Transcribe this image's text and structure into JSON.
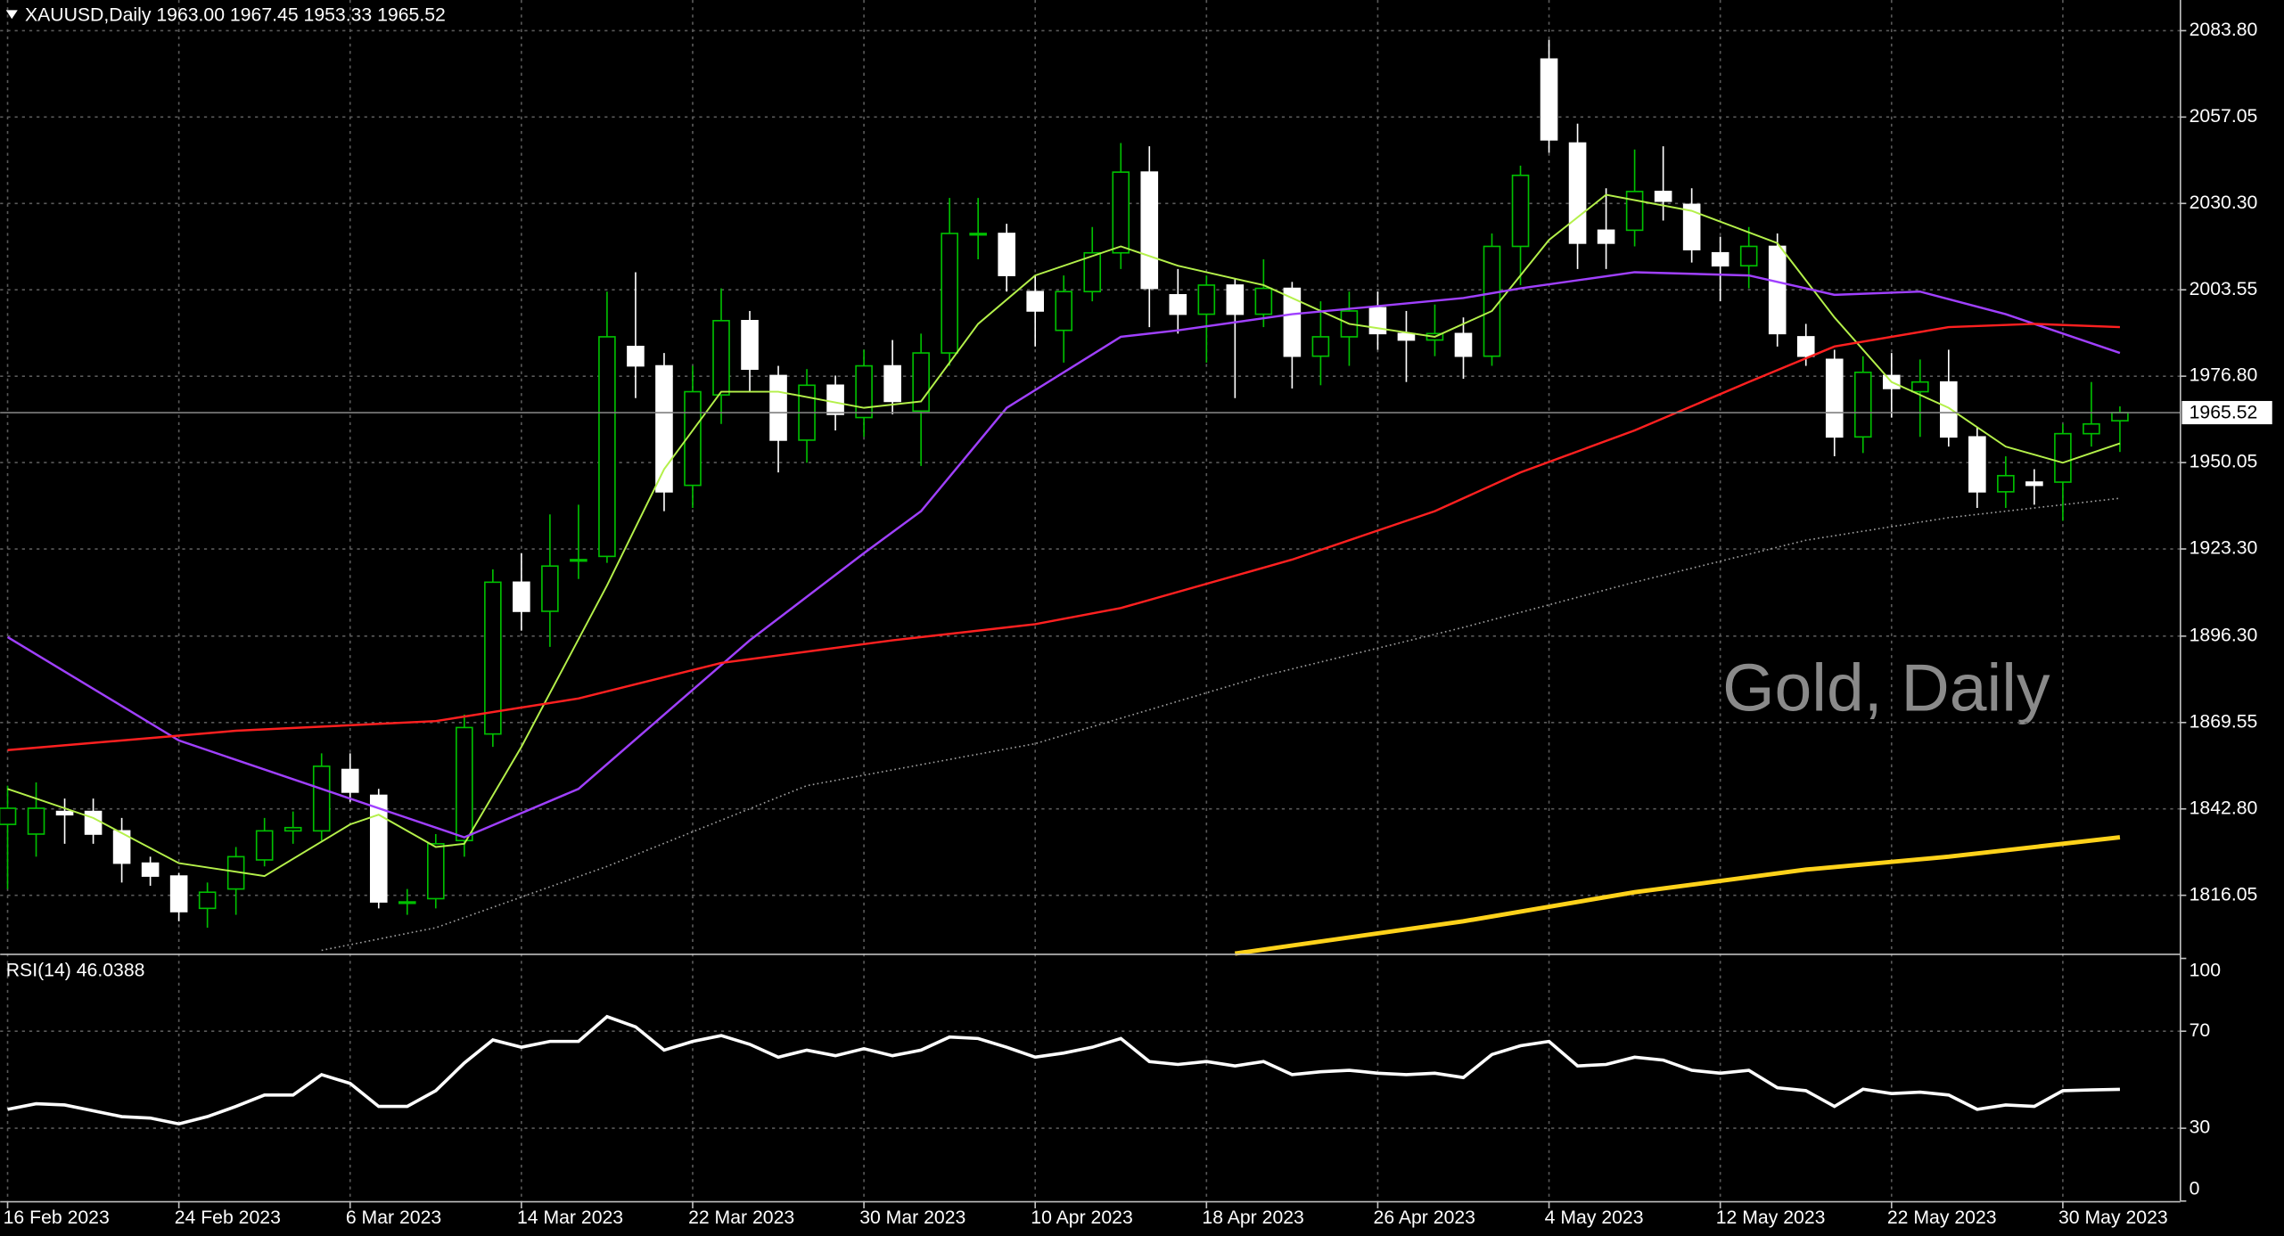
{
  "chart_data": [
    {
      "type": "candlestick",
      "title": "XAUUSD,Daily  1963.00 1967.45 1953.33 1965.52",
      "watermark": "Gold, Daily",
      "up_color": "#00c000",
      "down_color": "#ffffff",
      "open": [
        1838,
        1835,
        1842,
        1842,
        1836,
        1826,
        1822,
        1812,
        1818,
        1827,
        1836,
        1836,
        1855,
        1847,
        1814,
        1815,
        1833,
        1866,
        1913,
        1904,
        1920,
        1921,
        1986,
        1980,
        1943,
        1971,
        1994,
        1977,
        1957,
        1974,
        1964,
        1980,
        1966,
        1984,
        2021,
        2021,
        2003,
        1991,
        2003,
        2015,
        2040,
        2002,
        1996,
        2005,
        1996,
        2004,
        1983,
        1989,
        1998,
        1990,
        1988,
        1990,
        1983,
        2017,
        2075,
        2049,
        2022,
        2022,
        2034,
        2030,
        2015,
        2011,
        2017,
        1989,
        1982,
        1958,
        1977,
        1972,
        1975,
        1958,
        1941,
        1944,
        1944,
        1959,
        1963
      ],
      "high": [
        1850,
        1851,
        1846,
        1846,
        1840,
        1828,
        1823,
        1820,
        1831,
        1840,
        1842,
        1860,
        1860,
        1849,
        1818,
        1835,
        1872,
        1917,
        1922,
        1934,
        1937,
        2003,
        2009,
        1984,
        1980,
        2004,
        1997,
        1980,
        1979,
        1977,
        1985,
        1988,
        1990,
        2032,
        2032,
        2024,
        2008,
        2008,
        2023,
        2049,
        2048,
        2010,
        2008,
        2007,
        2013,
        2006,
        2000,
        2003,
        2003,
        1997,
        1999,
        1995,
        2021,
        2042,
        2081,
        2055,
        2035,
        2047,
        2048,
        2035,
        2020,
        2023,
        2021,
        1993,
        1985,
        1983,
        1984,
        1982,
        1985,
        1961,
        1952,
        1948,
        1962,
        1975,
        1967.45
      ],
      "low": [
        1818,
        1828,
        1832,
        1832,
        1820,
        1819,
        1808,
        1806,
        1810,
        1825,
        1832,
        1833,
        1845,
        1812,
        1810,
        1812,
        1828,
        1862,
        1898,
        1893,
        1914,
        1919,
        1970,
        1935,
        1936,
        1962,
        1972,
        1947,
        1950,
        1960,
        1958,
        1965,
        1949,
        1980,
        2013,
        2003,
        1986,
        1981,
        2000,
        2010,
        1992,
        1990,
        1981,
        1970,
        1992,
        1973,
        1974,
        1980,
        1985,
        1975,
        1983,
        1976,
        1980,
        2005,
        2046,
        2010,
        2010,
        2017,
        2025,
        2012,
        2000,
        2004,
        1986,
        1980,
        1952,
        1953,
        1964,
        1958,
        1955,
        1936,
        1936,
        1937,
        1932,
        1955,
        1953.33
      ],
      "close": [
        1843,
        1843,
        1841,
        1835,
        1826,
        1822,
        1811,
        1817,
        1828,
        1836,
        1837,
        1856,
        1848,
        1814,
        1814,
        1832,
        1868,
        1913,
        1904,
        1918,
        1920,
        1989,
        1980,
        1941,
        1972,
        1994,
        1979,
        1957,
        1974,
        1965,
        1980,
        1969,
        1984,
        2021,
        2021,
        2008,
        1997,
        2003,
        2015,
        2040,
        2004,
        1996,
        2005,
        1996,
        2004,
        1983,
        1989,
        1997,
        1990,
        1988,
        1990,
        1983,
        2017,
        2039,
        2050,
        2018,
        2018,
        2034,
        2031,
        2016,
        2011,
        2017,
        1990,
        1983,
        1958,
        1978,
        1973,
        1975,
        1958,
        1941,
        1946,
        1943,
        1959,
        1962,
        1965.52
      ],
      "last_price": 1965.52,
      "xlim": [
        -0.26,
        76.12
      ],
      "xticks": [
        {
          "value": 0,
          "label": "16 Feb 2023"
        },
        {
          "value": 6,
          "label": "24 Feb 2023"
        },
        {
          "value": 12,
          "label": "6 Mar 2023"
        },
        {
          "value": 18,
          "label": "14 Mar 2023"
        },
        {
          "value": 24,
          "label": "22 Mar 2023"
        },
        {
          "value": 30,
          "label": "30 Mar 2023"
        },
        {
          "value": 36,
          "label": "10 Apr 2023"
        },
        {
          "value": 42,
          "label": "18 Apr 2023"
        },
        {
          "value": 48,
          "label": "26 Apr 2023"
        },
        {
          "value": 54,
          "label": "4 May 2023"
        },
        {
          "value": 60,
          "label": "12 May 2023"
        },
        {
          "value": 66,
          "label": "22 May 2023"
        },
        {
          "value": 72,
          "label": "30 May 2023"
        }
      ],
      "ylim": [
        1798.0,
        2093.3
      ],
      "yticks": [
        {
          "value": 2083.8,
          "label": "2083.80"
        },
        {
          "value": 2057.05,
          "label": "2057.05"
        },
        {
          "value": 2030.3,
          "label": "2030.30"
        },
        {
          "value": 2003.55,
          "label": "2003.55"
        },
        {
          "value": 1976.8,
          "label": "1976.80"
        },
        {
          "value": 1950.05,
          "label": "1950.05"
        },
        {
          "value": 1923.3,
          "label": "1923.30"
        },
        {
          "value": 1896.3,
          "label": "1896.30"
        },
        {
          "value": 1869.55,
          "label": "1869.55"
        },
        {
          "value": 1842.8,
          "label": "1842.80"
        },
        {
          "value": 1816.05,
          "label": "1816.05"
        }
      ],
      "grid": true,
      "series": [
        {
          "color": "#b4f04a",
          "width": 1.2,
          "x": [
            0,
            3,
            6,
            9,
            12,
            13,
            15,
            16,
            18,
            21,
            23,
            25,
            27,
            30,
            32,
            34,
            36,
            39,
            41,
            44,
            47,
            50,
            52,
            54,
            56,
            59,
            62,
            64,
            66,
            68,
            70,
            72,
            74
          ],
          "values": [
            1849,
            1840,
            1826,
            1822,
            1838,
            1841,
            1831,
            1832,
            1862,
            1912,
            1948,
            1972,
            1972,
            1967,
            1969,
            1993,
            2008,
            2017,
            2011,
            2005,
            1993,
            1989,
            1997,
            2019,
            2033,
            2028,
            2018,
            1995,
            1975,
            1967,
            1955,
            1950,
            1956
          ]
        },
        {
          "color": "#a040ff",
          "width": 1.5,
          "x": [
            0,
            6,
            13,
            16,
            20,
            23,
            26,
            30,
            32,
            35,
            39,
            41,
            45,
            51,
            53,
            57,
            61,
            64,
            67,
            70,
            74
          ],
          "values": [
            1896,
            1864,
            1843,
            1834,
            1849,
            1872,
            1895,
            1922,
            1935,
            1967,
            1989,
            1991,
            1996,
            2001,
            2004,
            2009,
            2008,
            2002,
            2003,
            1996,
            1984
          ]
        },
        {
          "color": "#ff2020",
          "width": 1.5,
          "x": [
            0,
            8,
            15,
            20,
            25,
            31,
            36,
            39,
            45,
            50,
            53,
            57,
            61,
            64,
            68,
            71,
            74
          ],
          "values": [
            1861,
            1867,
            1870,
            1877,
            1888,
            1895,
            1900,
            1905,
            1920,
            1935,
            1947,
            1960,
            1975,
            1986,
            1992,
            1993,
            1992
          ]
        },
        {
          "color": "#a0a0a0",
          "width": 1,
          "dash": "1 2",
          "x": [
            11,
            15,
            21,
            28,
            36,
            44,
            51,
            57,
            63,
            68,
            74
          ],
          "values": [
            1799,
            1806,
            1825,
            1850,
            1863,
            1884,
            1899,
            1913,
            1926,
            1933,
            1939
          ]
        },
        {
          "color": "#ffd21a",
          "width": 3,
          "x": [
            43,
            51,
            57,
            63,
            68,
            74
          ],
          "values": [
            1798,
            1808,
            1817,
            1824,
            1828,
            1834
          ]
        }
      ]
    },
    {
      "type": "line",
      "title": "RSI(14) 46.0388",
      "color": "#ffffff",
      "values": [
        37.8,
        40.1,
        39.6,
        37.2,
        34.8,
        34.2,
        31.8,
        34.8,
        39.0,
        43.7,
        43.7,
        52.1,
        48.5,
        39.0,
        39.0,
        45.5,
        56.9,
        66.4,
        63.4,
        65.8,
        65.8,
        76.0,
        71.8,
        62.2,
        65.8,
        68.2,
        64.6,
        59.3,
        62.2,
        59.9,
        62.8,
        59.9,
        62.2,
        67.6,
        67.0,
        63.4,
        59.3,
        61.0,
        63.4,
        67.0,
        57.5,
        56.3,
        57.5,
        55.7,
        57.5,
        52.1,
        53.3,
        53.9,
        52.7,
        52.1,
        52.7,
        50.9,
        60.4,
        64.0,
        65.8,
        55.7,
        56.3,
        59.3,
        58.1,
        53.9,
        52.7,
        53.9,
        46.7,
        45.5,
        39.0,
        46.1,
        44.3,
        44.9,
        43.7,
        37.8,
        39.6,
        39.0,
        45.5,
        45.8,
        46.0388
      ],
      "ylim": [
        0,
        102
      ],
      "yticks": [
        0,
        30,
        70,
        100
      ],
      "grid": true
    }
  ]
}
